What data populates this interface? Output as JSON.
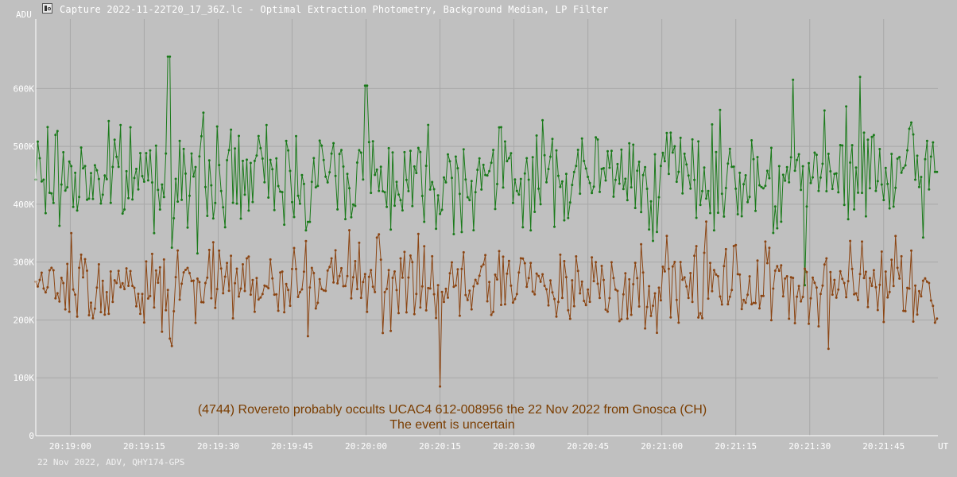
{
  "window": {
    "title": "Capture 2022-11-22T20_17_36Z.lc - Optimal Extraction Photometry, Background Median, LP Filter",
    "icon": "chart-app-icon"
  },
  "footer": {
    "text": "22 Nov 2022, ADV, QHY174-GPS"
  },
  "colors": {
    "background": "#c0c0c0",
    "grid": "#a8a8a8",
    "target": "#8b4513",
    "comparison": "#1a7a1a",
    "annotation": "#7a3d00"
  },
  "chart_data": {
    "type": "line",
    "ylabel": "ADU",
    "xlabel": "UT",
    "ylim": [
      0,
      720000
    ],
    "xlim": [
      "20:18:53",
      "20:21:56"
    ],
    "y_ticks": [
      {
        "value": 0,
        "label": "0"
      },
      {
        "value": 100000,
        "label": "100K"
      },
      {
        "value": 200000,
        "label": "200K"
      },
      {
        "value": 300000,
        "label": "300K"
      },
      {
        "value": 400000,
        "label": "400K"
      },
      {
        "value": 500000,
        "label": "500K"
      },
      {
        "value": 600000,
        "label": "600K"
      }
    ],
    "x_ticks": [
      "20:19:00",
      "20:19:15",
      "20:19:30",
      "20:19:45",
      "20:20:00",
      "20:20:15",
      "20:20:30",
      "20:20:45",
      "20:21:00",
      "20:21:15",
      "20:21:30",
      "20:21:45"
    ],
    "grid": true,
    "frames_per_second": 2.5,
    "annotation": [
      "(4744) Rovereto probably occults UCAC4 612-008956 the 22 Nov 2022 from Gnosca (CH)",
      "The event is uncertain"
    ],
    "series": [
      {
        "role": "target",
        "color": "#8b4513",
        "start": "20:18:53",
        "base": 262000,
        "amplitude": 55000,
        "spikes": [
          {
            "t": "20:19:00.4",
            "y": 350000
          },
          {
            "t": "20:19:20.5",
            "y": 155000
          },
          {
            "t": "20:19:56.5",
            "y": 355000
          },
          {
            "t": "20:20:15.0",
            "y": 85000
          },
          {
            "t": "20:21:09.0",
            "y": 370000
          },
          {
            "t": "20:21:33.8",
            "y": 150000
          },
          {
            "t": "20:21:47.5",
            "y": 345000
          }
        ]
      },
      {
        "role": "comparison",
        "color": "#1a7a1a",
        "start": "20:18:53",
        "base": 448000,
        "amplitude": 70000,
        "spikes": [
          {
            "t": "20:19:20.0",
            "y": 655000
          },
          {
            "t": "20:19:25.8",
            "y": 315000
          },
          {
            "t": "20:20:00.0",
            "y": 605000
          },
          {
            "t": "20:21:26.5",
            "y": 615000
          },
          {
            "t": "20:21:29.0",
            "y": 260000
          },
          {
            "t": "20:21:40.4",
            "y": 620000
          }
        ]
      }
    ]
  }
}
